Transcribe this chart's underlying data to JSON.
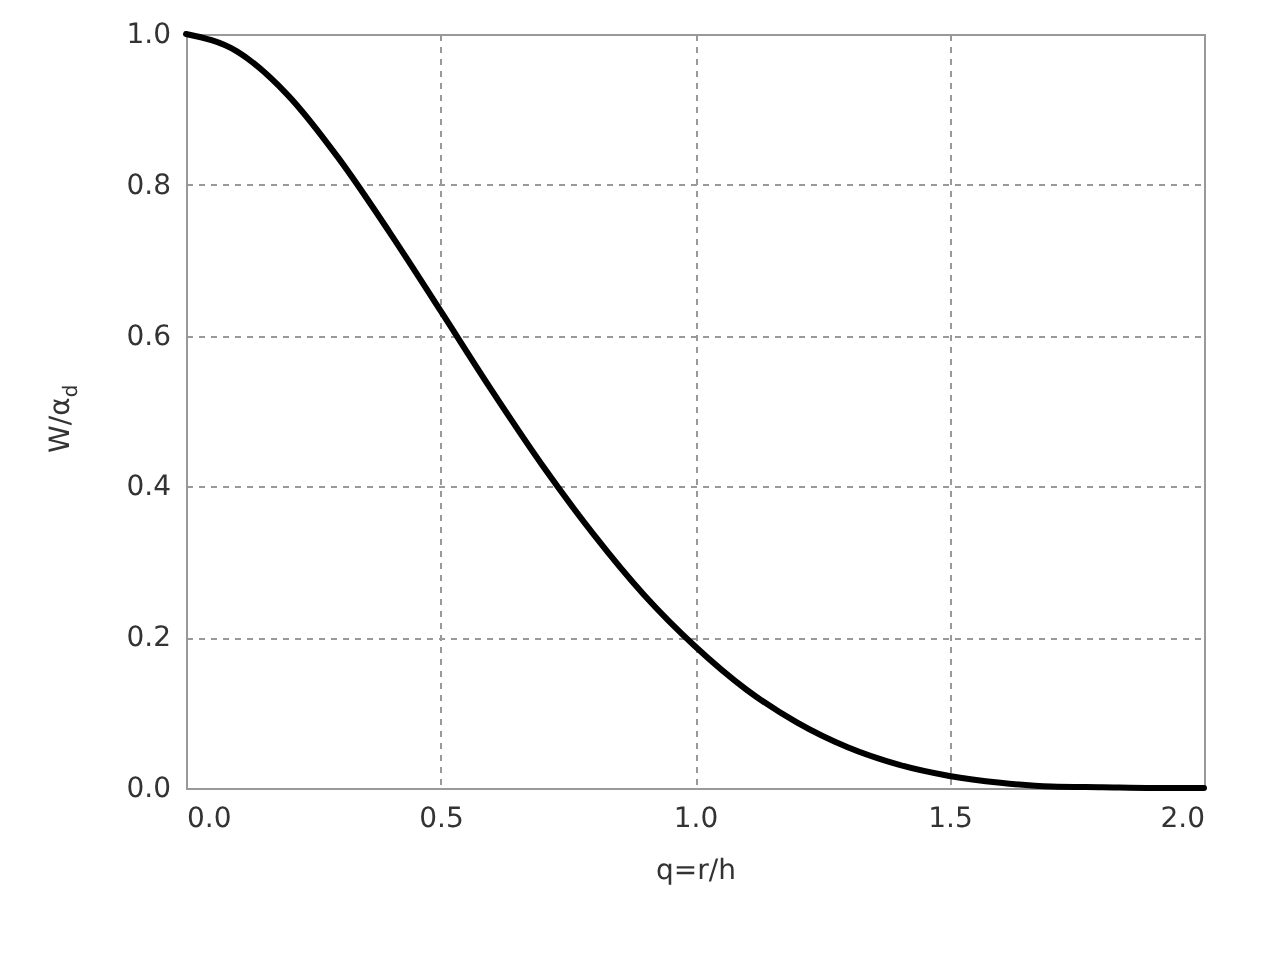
{
  "chart_data": {
    "type": "line",
    "xlabel": "q=r/h",
    "ylabel": "W/α$_{d}$",
    "x": [
      0,
      0.1,
      0.2,
      0.3,
      0.4,
      0.5,
      0.6,
      0.7,
      0.8,
      0.9,
      1.0,
      1.1,
      1.2,
      1.3,
      1.4,
      1.5,
      1.6,
      1.7,
      1.8,
      1.9,
      2.0
    ],
    "series": [
      {
        "color": "#000000",
        "values": [
          1,
          0.977,
          0.919,
          0.835,
          0.737,
          0.633,
          0.528,
          0.428,
          0.337,
          0.256,
          0.188,
          0.131,
          0.087,
          0.054,
          0.031,
          0.016,
          0.007,
          0.002,
          0.001,
          0,
          0
        ]
      }
    ],
    "xlim": [
      0,
      2
    ],
    "ylim": [
      0,
      1
    ],
    "xticks": [
      {
        "value": 0,
        "label": "0.0"
      },
      {
        "value": 0.5,
        "label": "0.5"
      },
      {
        "value": 1,
        "label": "1.0"
      },
      {
        "value": 1.5,
        "label": "1.5"
      },
      {
        "value": 2,
        "label": "2.0"
      }
    ],
    "yticks": [
      {
        "value": 0,
        "label": "0.0"
      },
      {
        "value": 0.2,
        "label": "0.2"
      },
      {
        "value": 0.4,
        "label": "0.4"
      },
      {
        "value": 0.6,
        "label": "0.6"
      },
      {
        "value": 0.8,
        "label": "0.8"
      },
      {
        "value": 1,
        "label": "1.0"
      }
    ],
    "grid": true,
    "marker": "none",
    "line_style": "solid"
  }
}
